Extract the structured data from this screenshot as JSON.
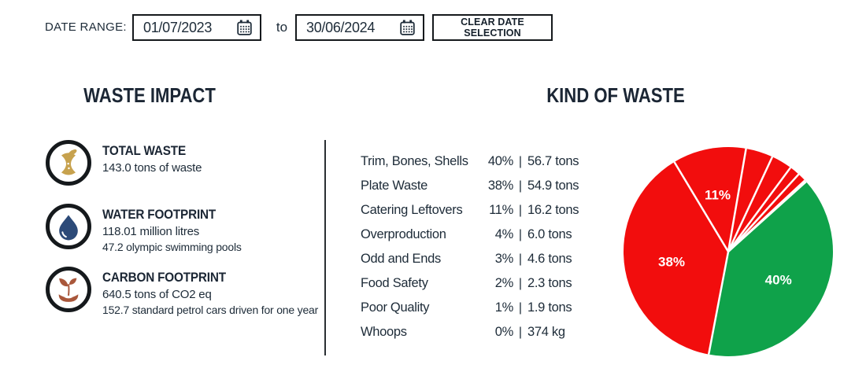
{
  "date_bar": {
    "label": "DATE RANGE:",
    "from_value": "01/07/2023",
    "to_separator": "to",
    "to_value": "30/06/2024",
    "clear_button": "CLEAR DATE SELECTION"
  },
  "waste_impact": {
    "title": "WASTE IMPACT",
    "items": [
      {
        "icon": "apple-core-icon",
        "title": "TOTAL WASTE",
        "line1": "143.0 tons of waste",
        "line2": "",
        "icon_color": "#c7a24e"
      },
      {
        "icon": "water-drop-icon",
        "title": "WATER FOOTPRINT",
        "line1": "118.01 million litres",
        "line2": "47.2 olympic swimming pools",
        "icon_color": "#2c4a78"
      },
      {
        "icon": "carbon-plant-icon",
        "title": "CARBON FOOTPRINT",
        "line1": "640.5 tons of CO2 eq",
        "line2": "152.7 standard petrol cars driven for one year",
        "icon_color": "#a9573b"
      }
    ]
  },
  "kind_of_waste": {
    "title": "KIND OF WASTE",
    "separator": "|",
    "rows": [
      {
        "label": "Trim, Bones, Shells",
        "percent": "40%",
        "amount": "56.7 tons"
      },
      {
        "label": "Plate Waste",
        "percent": "38%",
        "amount": "54.9 tons"
      },
      {
        "label": "Catering Leftovers",
        "percent": "11%",
        "amount": "16.2 tons"
      },
      {
        "label": "Overproduction",
        "percent": "4%",
        "amount": "6.0 tons"
      },
      {
        "label": "Odd and Ends",
        "percent": "3%",
        "amount": "4.6 tons"
      },
      {
        "label": "Food Safety",
        "percent": "2%",
        "amount": "2.3 tons"
      },
      {
        "label": "Poor Quality",
        "percent": "1%",
        "amount": "1.9 tons"
      },
      {
        "label": "Whoops",
        "percent": "0%",
        "amount": "374 kg"
      }
    ]
  },
  "chart_data": {
    "type": "pie",
    "title": "KIND OF WASTE",
    "categories": [
      "Trim, Bones, Shells",
      "Plate Waste",
      "Catering Leftovers",
      "Overproduction",
      "Odd and Ends",
      "Food Safety",
      "Poor Quality",
      "Whoops"
    ],
    "values_tons": [
      56.7,
      54.9,
      16.2,
      6.0,
      4.6,
      2.3,
      1.9,
      0.374
    ],
    "percents": [
      40,
      38,
      11,
      4,
      3,
      2,
      1,
      0
    ],
    "percent_labels": [
      "40%",
      "38%",
      "11%",
      "4%",
      "3%",
      "2%",
      "1%",
      "0%"
    ],
    "colors": [
      "#0fa24a",
      "#f20d0d",
      "#f20d0d",
      "#f20d0d",
      "#f20d0d",
      "#f20d0d",
      "#f20d0d",
      "#f20d0d"
    ],
    "slice_border_color": "#ffffff",
    "label_color": "#ffffff",
    "start_angle_deg": 42,
    "direction": "clockwise",
    "show_label_min_percent": 10,
    "legend": "none"
  },
  "colors": {
    "text_dark": "#1d2b38",
    "heading": "#1b2634",
    "border_black": "#15191c",
    "pie_green": "#0fa24a",
    "pie_red": "#f20d0d",
    "icon_gold": "#c7a24e",
    "icon_blue": "#2c4a78",
    "icon_rust": "#a9573b"
  }
}
